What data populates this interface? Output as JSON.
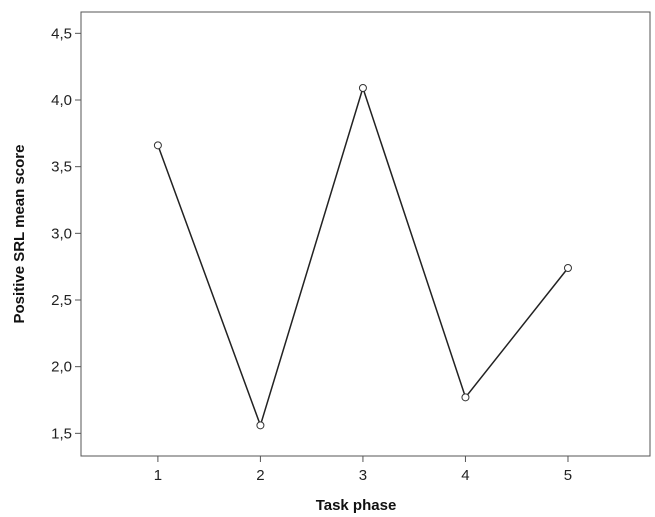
{
  "chart_data": {
    "type": "line",
    "title": "",
    "xlabel": "Task phase",
    "ylabel": "Positive SRL mean score",
    "x": [
      1,
      2,
      3,
      4,
      5
    ],
    "x_tick_labels": [
      "1",
      "2",
      "3",
      "4",
      "5"
    ],
    "xlim": [
      0.25,
      5.8
    ],
    "y_ticks": [
      1.5,
      2.0,
      2.5,
      3.0,
      3.5,
      4.0,
      4.5
    ],
    "y_tick_labels": [
      "1,5",
      "2,0",
      "2,5",
      "3,0",
      "3,5",
      "4,0",
      "4,5"
    ],
    "ylim": [
      1.33,
      4.66
    ],
    "series": [
      {
        "values": [
          3.66,
          1.56,
          4.09,
          1.77,
          2.74
        ]
      }
    ],
    "grid": false,
    "legend": "none",
    "colors": {
      "line": "#222222",
      "marker_stroke": "#333333",
      "marker_fill": "#ffffff",
      "frame": "#555555"
    }
  }
}
